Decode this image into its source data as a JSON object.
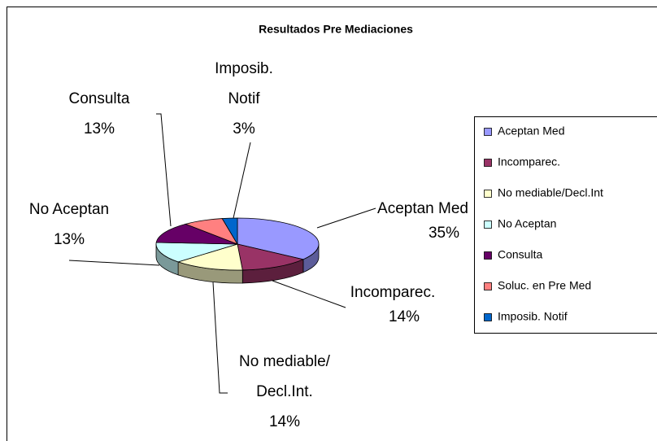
{
  "chart_data": {
    "type": "pie3d",
    "title": "Resultados Pre Mediaciones",
    "categories": [
      "Aceptan Med",
      "Incomparec.",
      "No mediable/Decl.Int",
      "No Aceptan",
      "Consulta",
      "Soluc. en Pre Med",
      "Imposib. Notif"
    ],
    "values": [
      35,
      14,
      14,
      13,
      13,
      8,
      3
    ],
    "value_labels": [
      "35%",
      "14%",
      "14%",
      "13%",
      "13%",
      null,
      "3%"
    ],
    "slice_labels": [
      [
        "Aceptan Med"
      ],
      [
        "Incomparec."
      ],
      [
        "No mediable/",
        "Decl.Int."
      ],
      [
        "No Aceptan"
      ],
      [
        "Consulta"
      ],
      null,
      [
        "Imposib.",
        "Notif"
      ]
    ],
    "colors": [
      "#9999ff",
      "#993366",
      "#ffffcc",
      "#ccffff",
      "#660066",
      "#ff8080",
      "#0066cc"
    ],
    "legend": "right"
  }
}
